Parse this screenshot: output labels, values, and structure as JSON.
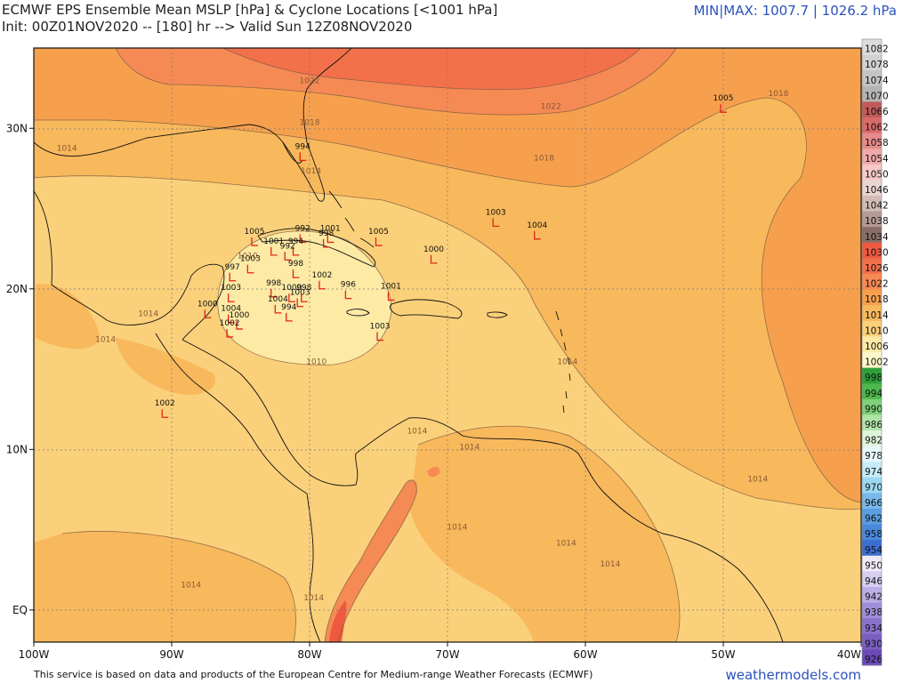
{
  "header": {
    "title_line1": "ECMWF EPS Ensemble Mean MSLP [hPa] & Cyclone Locations [<1001 hPa]",
    "title_line2": "Init: 00Z01NOV2020 -- [180] hr --> Valid Sun 12Z08NOV2020",
    "minmax": "MIN|MAX: 1007.7 | 1026.2 hPa"
  },
  "footer": {
    "attribution": "This service is based on data and products of the European Centre for Medium-range Weather Forecasts (ECMWF)",
    "brand": "weathermodels.com"
  },
  "map": {
    "lon_range": [
      -100,
      -40
    ],
    "lat_range": [
      -2,
      35
    ],
    "lon_ticks": [
      {
        "lon": -100,
        "label": "100W"
      },
      {
        "lon": -90,
        "label": "90W"
      },
      {
        "lon": -80,
        "label": "80W"
      },
      {
        "lon": -70,
        "label": "70W"
      },
      {
        "lon": -60,
        "label": "60W"
      },
      {
        "lon": -50,
        "label": "50W"
      },
      {
        "lon": -40,
        "label": "40W"
      }
    ],
    "lat_ticks": [
      {
        "lat": 30,
        "label": "30N"
      },
      {
        "lat": 20,
        "label": "20N"
      },
      {
        "lat": 10,
        "label": "10N"
      },
      {
        "lat": 0,
        "label": "EQ"
      }
    ],
    "contour_labels": [
      {
        "lon": -80,
        "lat": 32.8,
        "text": "1022"
      },
      {
        "lon": -80,
        "lat": 30.2,
        "text": "1018"
      },
      {
        "lon": -62.5,
        "lat": 31.2,
        "text": "1022"
      },
      {
        "lon": -46,
        "lat": 32,
        "text": "1018"
      },
      {
        "lon": -63,
        "lat": 28,
        "text": "1018"
      },
      {
        "lon": -97.6,
        "lat": 28.6,
        "text": "1014"
      },
      {
        "lon": -79.9,
        "lat": 27.2,
        "text": "1014"
      },
      {
        "lon": -84.5,
        "lat": 21.9,
        "text": "1010"
      },
      {
        "lon": -79.5,
        "lat": 15.3,
        "text": "1010"
      },
      {
        "lon": -91.7,
        "lat": 18.3,
        "text": "1014"
      },
      {
        "lon": -94.8,
        "lat": 16.7,
        "text": "1014"
      },
      {
        "lon": -61.3,
        "lat": 15.3,
        "text": "1014"
      },
      {
        "lon": -72.2,
        "lat": 11.0,
        "text": "1014"
      },
      {
        "lon": -68.4,
        "lat": 10.0,
        "text": "1014"
      },
      {
        "lon": -47.5,
        "lat": 8.0,
        "text": "1014"
      },
      {
        "lon": -69.3,
        "lat": 5.0,
        "text": "1014"
      },
      {
        "lon": -61.4,
        "lat": 4.0,
        "text": "1014"
      },
      {
        "lon": -58.2,
        "lat": 2.7,
        "text": "1014"
      },
      {
        "lon": -88.6,
        "lat": 1.4,
        "text": "1014"
      },
      {
        "lon": -79.7,
        "lat": 0.6,
        "text": "1014"
      }
    ],
    "cyclones": [
      {
        "lon": -50.0,
        "lat": 31.5,
        "value": "1005"
      },
      {
        "lon": -80.5,
        "lat": 28.5,
        "value": "994"
      },
      {
        "lon": -66.5,
        "lat": 24.4,
        "value": "1003"
      },
      {
        "lon": -63.5,
        "lat": 23.6,
        "value": "1004"
      },
      {
        "lon": -75.0,
        "lat": 23.2,
        "value": "1005"
      },
      {
        "lon": -71.0,
        "lat": 22.1,
        "value": "1000"
      },
      {
        "lon": -84.0,
        "lat": 23.2,
        "value": "1005"
      },
      {
        "lon": -80.5,
        "lat": 23.4,
        "value": "992"
      },
      {
        "lon": -78.5,
        "lat": 23.4,
        "value": "1001"
      },
      {
        "lon": -78.8,
        "lat": 23.1,
        "value": "998"
      },
      {
        "lon": -82.6,
        "lat": 22.6,
        "value": "1001"
      },
      {
        "lon": -81.0,
        "lat": 22.6,
        "value": "994"
      },
      {
        "lon": -81.6,
        "lat": 22.3,
        "value": "992"
      },
      {
        "lon": -84.3,
        "lat": 21.5,
        "value": "1003"
      },
      {
        "lon": -85.6,
        "lat": 21.0,
        "value": "997"
      },
      {
        "lon": -81.0,
        "lat": 21.2,
        "value": "998"
      },
      {
        "lon": -79.1,
        "lat": 20.5,
        "value": "1002"
      },
      {
        "lon": -77.2,
        "lat": 19.9,
        "value": "996"
      },
      {
        "lon": -82.6,
        "lat": 20.0,
        "value": "998"
      },
      {
        "lon": -81.3,
        "lat": 19.7,
        "value": "1000"
      },
      {
        "lon": -80.4,
        "lat": 19.7,
        "value": "998"
      },
      {
        "lon": -80.7,
        "lat": 19.4,
        "value": "1003"
      },
      {
        "lon": -85.7,
        "lat": 19.7,
        "value": "1003"
      },
      {
        "lon": -82.3,
        "lat": 19.0,
        "value": "1004"
      },
      {
        "lon": -81.5,
        "lat": 18.5,
        "value": "994"
      },
      {
        "lon": -87.4,
        "lat": 18.7,
        "value": "1000"
      },
      {
        "lon": -85.7,
        "lat": 18.4,
        "value": "1004"
      },
      {
        "lon": -85.1,
        "lat": 18.0,
        "value": "1000"
      },
      {
        "lon": -85.8,
        "lat": 17.5,
        "value": "1002"
      },
      {
        "lon": -74.9,
        "lat": 17.3,
        "value": "1003"
      },
      {
        "lon": -74.1,
        "lat": 19.8,
        "value": "1001"
      },
      {
        "lon": -90.5,
        "lat": 12.5,
        "value": "1002"
      }
    ]
  },
  "colorbar": {
    "levels": [
      {
        "label": "1082",
        "color": "#dcdcdc"
      },
      {
        "label": "1078",
        "color": "#d2d2d2"
      },
      {
        "label": "1074",
        "color": "#c4c4c4"
      },
      {
        "label": "1070",
        "color": "#b4b4b4"
      },
      {
        "label": "1066",
        "color": "#c25a5a"
      },
      {
        "label": "1062",
        "color": "#d96a6a"
      },
      {
        "label": "1058",
        "color": "#e68a8a"
      },
      {
        "label": "1054",
        "color": "#f0a8a8"
      },
      {
        "label": "1050",
        "color": "#f6c8c8"
      },
      {
        "label": "1046",
        "color": "#e8d4d0"
      },
      {
        "label": "1042",
        "color": "#d2bcb8"
      },
      {
        "label": "1038",
        "color": "#b49a94"
      },
      {
        "label": "1034",
        "color": "#8a6e66"
      },
      {
        "label": "1030",
        "color": "#ee5a40"
      },
      {
        "label": "1026",
        "color": "#f2704a"
      },
      {
        "label": "1022",
        "color": "#f58a55"
      },
      {
        "label": "1018",
        "color": "#f6a04e"
      },
      {
        "label": "1014",
        "color": "#f8b85c"
      },
      {
        "label": "1010",
        "color": "#fbd07a"
      },
      {
        "label": "1006",
        "color": "#fdeaa4"
      },
      {
        "label": "1002",
        "color": "#fff8cc"
      },
      {
        "label": "998",
        "color": "#2e9e3a"
      },
      {
        "label": "994",
        "color": "#4cb84c"
      },
      {
        "label": "990",
        "color": "#7ed07a"
      },
      {
        "label": "986",
        "color": "#b0e4a8"
      },
      {
        "label": "982",
        "color": "#dff4da"
      },
      {
        "label": "978",
        "color": "#e6f6fb"
      },
      {
        "label": "974",
        "color": "#c6ecf8"
      },
      {
        "label": "970",
        "color": "#9cd8f2"
      },
      {
        "label": "966",
        "color": "#78b8ea"
      },
      {
        "label": "962",
        "color": "#5c9ee2"
      },
      {
        "label": "958",
        "color": "#4a88dc"
      },
      {
        "label": "954",
        "color": "#3a6ed0"
      },
      {
        "label": "950",
        "color": "#efeaf8"
      },
      {
        "label": "946",
        "color": "#d6cef0"
      },
      {
        "label": "942",
        "color": "#bcaee6"
      },
      {
        "label": "938",
        "color": "#a08ed8"
      },
      {
        "label": "934",
        "color": "#8a72cc"
      },
      {
        "label": "930",
        "color": "#7a5ec2"
      },
      {
        "label": "926",
        "color": "#6a4ab6"
      }
    ]
  }
}
